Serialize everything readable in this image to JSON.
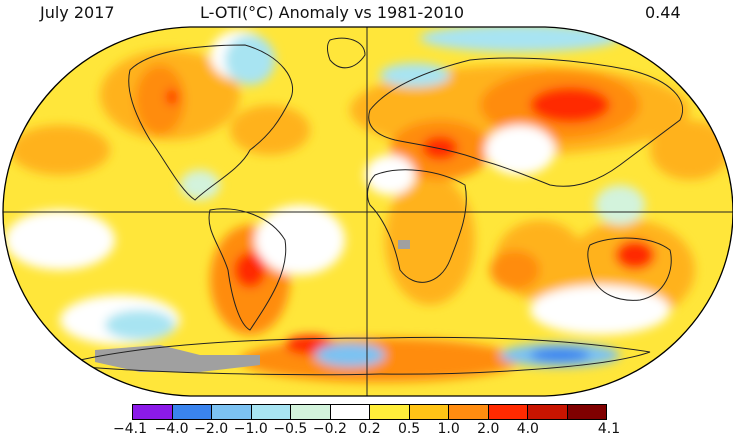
{
  "header": {
    "date": "July 2017",
    "title": "L-OTI(°C) Anomaly vs 1981-2010",
    "global_mean": "0.44"
  },
  "legend": {
    "bins": [
      {
        "color": "#8b1ae8"
      },
      {
        "color": "#3a84ee"
      },
      {
        "color": "#7cc2f2"
      },
      {
        "color": "#a8e4f2"
      },
      {
        "color": "#d3f3dc"
      },
      {
        "color": "#ffffff"
      },
      {
        "color": "#ffee3a"
      },
      {
        "color": "#ffc416"
      },
      {
        "color": "#ff8c10"
      },
      {
        "color": "#ff2a00"
      },
      {
        "color": "#c81400"
      },
      {
        "color": "#800000"
      }
    ],
    "labels": [
      "−4.1",
      "−4.0",
      "−2.0",
      "−1.0",
      "−0.5",
      "−0.2",
      "0.2",
      "0.5",
      "1.0",
      "2.0",
      "4.0",
      "4.1"
    ]
  },
  "map": {
    "projection": "Robinson",
    "variable": "surface temperature anomaly (°C)",
    "regions": [
      {
        "name": "global-background",
        "class": "0.5 to 1.0"
      },
      {
        "name": "central-asia",
        "class": "2.0 to 4.0"
      },
      {
        "name": "central-australia",
        "class": "2.0 to 4.0"
      },
      {
        "name": "south-america",
        "class": "2.0 to 4.0"
      },
      {
        "name": "middle-east",
        "class": "1.0 to 2.0"
      },
      {
        "name": "western-north-america",
        "class": "1.0 to 2.0"
      },
      {
        "name": "antarctic-peninsula",
        "class": "2.0 to 4.0"
      },
      {
        "name": "east-antarctica",
        "class": "-2.0 to -1.0"
      },
      {
        "name": "greenland-arctic",
        "class": "-2.0 to -1.0"
      },
      {
        "name": "missing-data",
        "class": "no data"
      }
    ]
  }
}
